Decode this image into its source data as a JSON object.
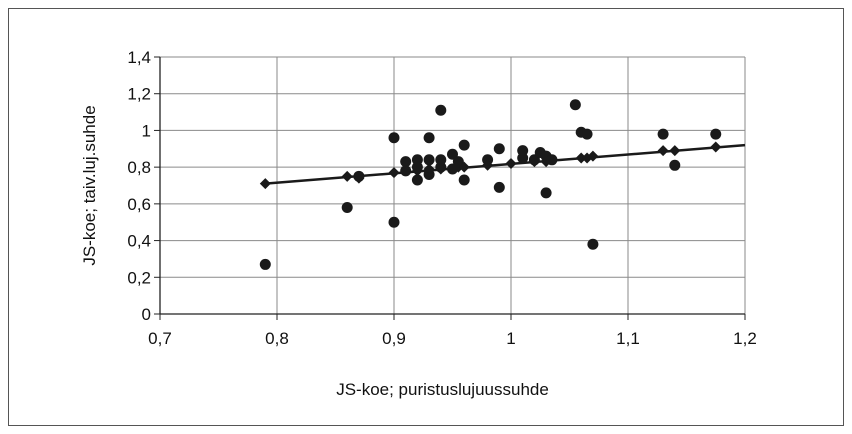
{
  "chart_data": {
    "type": "scatter",
    "title": "",
    "xlabel": "JS-koe; puristuslujuussuhde",
    "ylabel": "JS-koe; taiv.luj.suhde",
    "xlim": [
      0.7,
      1.2
    ],
    "ylim": [
      0,
      1.4
    ],
    "x_ticks": [
      0.7,
      0.8,
      0.9,
      1.0,
      1.1,
      1.2
    ],
    "y_ticks": [
      0,
      0.2,
      0.4,
      0.6,
      0.8,
      1.0,
      1.2,
      1.4
    ],
    "x_tick_labels": [
      "0,7",
      "0,8",
      "0,9",
      "1",
      "1,1",
      "1,2"
    ],
    "y_tick_labels": [
      "0",
      "0,2",
      "0,4",
      "0,6",
      "0,8",
      "1",
      "1,2",
      "1,4"
    ],
    "grid": true,
    "legend": "none",
    "series": [
      {
        "marker": "circle",
        "color": "#1a1a1a",
        "points": [
          [
            0.79,
            0.27
          ],
          [
            0.86,
            0.58
          ],
          [
            0.87,
            0.75
          ],
          [
            0.9,
            0.5
          ],
          [
            0.9,
            0.96
          ],
          [
            0.91,
            0.83
          ],
          [
            0.91,
            0.78
          ],
          [
            0.92,
            0.73
          ],
          [
            0.92,
            0.8
          ],
          [
            0.92,
            0.84
          ],
          [
            0.93,
            0.76
          ],
          [
            0.93,
            0.84
          ],
          [
            0.93,
            0.96
          ],
          [
            0.94,
            1.11
          ],
          [
            0.94,
            0.8
          ],
          [
            0.94,
            0.84
          ],
          [
            0.95,
            0.79
          ],
          [
            0.95,
            0.87
          ],
          [
            0.955,
            0.83
          ],
          [
            0.96,
            0.92
          ],
          [
            0.96,
            0.73
          ],
          [
            0.98,
            0.84
          ],
          [
            0.99,
            0.9
          ],
          [
            0.99,
            0.69
          ],
          [
            1.01,
            0.89
          ],
          [
            1.01,
            0.85
          ],
          [
            1.02,
            0.84
          ],
          [
            1.025,
            0.88
          ],
          [
            1.03,
            0.86
          ],
          [
            1.03,
            0.66
          ],
          [
            1.035,
            0.84
          ],
          [
            1.055,
            1.14
          ],
          [
            1.06,
            0.99
          ],
          [
            1.065,
            0.98
          ],
          [
            1.07,
            0.38
          ],
          [
            1.13,
            0.98
          ],
          [
            1.14,
            0.81
          ],
          [
            1.175,
            0.98
          ]
        ]
      },
      {
        "marker": "diamond",
        "color": "#1a1a1a",
        "points": [
          [
            0.79,
            0.71
          ],
          [
            0.86,
            0.75
          ],
          [
            0.87,
            0.74
          ],
          [
            0.9,
            0.77
          ],
          [
            0.92,
            0.78
          ],
          [
            0.93,
            0.79
          ],
          [
            0.94,
            0.79
          ],
          [
            0.955,
            0.8
          ],
          [
            0.96,
            0.8
          ],
          [
            0.98,
            0.81
          ],
          [
            1.0,
            0.82
          ],
          [
            1.02,
            0.83
          ],
          [
            1.03,
            0.83
          ],
          [
            1.06,
            0.85
          ],
          [
            1.065,
            0.85
          ],
          [
            1.07,
            0.86
          ],
          [
            1.13,
            0.89
          ],
          [
            1.14,
            0.89
          ],
          [
            1.175,
            0.91
          ]
        ],
        "trendline": {
          "x": [
            0.79,
            1.2
          ],
          "y": [
            0.71,
            0.92
          ]
        }
      }
    ]
  }
}
